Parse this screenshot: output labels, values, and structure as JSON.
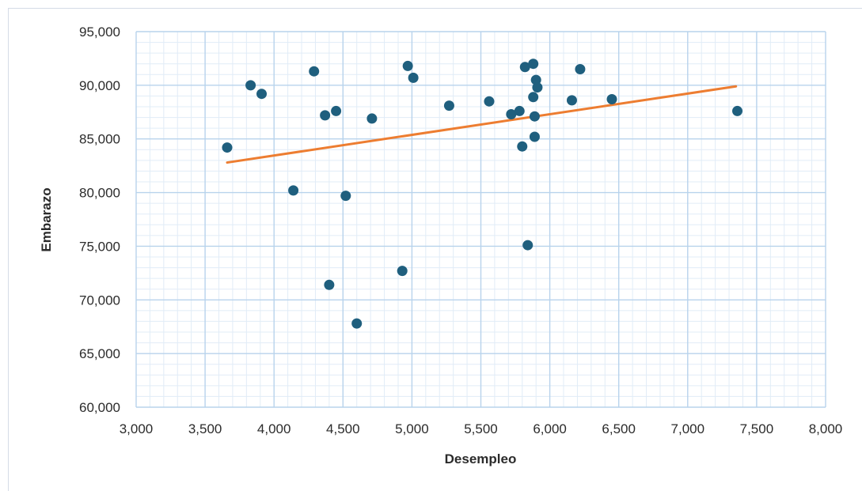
{
  "chart_data": {
    "type": "scatter",
    "xlabel": "Desempleo",
    "ylabel": "Embarazo",
    "xlim": [
      3000,
      8000
    ],
    "ylim": [
      60000,
      95000
    ],
    "x_major_step": 500,
    "y_major_step": 5000,
    "x_minor_step": 100,
    "y_minor_step": 1000,
    "x_ticks": [
      "3,000",
      "3,500",
      "4,000",
      "4,500",
      "5,000",
      "5,500",
      "6,000",
      "6,500",
      "7,000",
      "7,500",
      "8,000"
    ],
    "y_ticks": [
      "60,000",
      "65,000",
      "70,000",
      "75,000",
      "80,000",
      "85,000",
      "90,000",
      "95,000"
    ],
    "grid": true,
    "legend": "none",
    "colors": {
      "points": "#1f5f7e",
      "trendline": "#ed7d31",
      "major_grid": "#b8d3ec",
      "minor_grid": "#e1ecf7"
    },
    "points": [
      {
        "x": 3660,
        "y": 84200
      },
      {
        "x": 3830,
        "y": 90000
      },
      {
        "x": 3910,
        "y": 89200
      },
      {
        "x": 4140,
        "y": 80200
      },
      {
        "x": 4290,
        "y": 91300
      },
      {
        "x": 4370,
        "y": 87200
      },
      {
        "x": 4400,
        "y": 71400
      },
      {
        "x": 4450,
        "y": 87600
      },
      {
        "x": 4520,
        "y": 79700
      },
      {
        "x": 4600,
        "y": 67800
      },
      {
        "x": 4710,
        "y": 86900
      },
      {
        "x": 4930,
        "y": 72700
      },
      {
        "x": 4970,
        "y": 91800
      },
      {
        "x": 5010,
        "y": 90700
      },
      {
        "x": 5270,
        "y": 88100
      },
      {
        "x": 5560,
        "y": 88500
      },
      {
        "x": 5720,
        "y": 87300
      },
      {
        "x": 5780,
        "y": 87600
      },
      {
        "x": 5800,
        "y": 84300
      },
      {
        "x": 5820,
        "y": 91700
      },
      {
        "x": 5840,
        "y": 75100
      },
      {
        "x": 5880,
        "y": 92000
      },
      {
        "x": 5880,
        "y": 88900
      },
      {
        "x": 5890,
        "y": 87100
      },
      {
        "x": 5890,
        "y": 85200
      },
      {
        "x": 5900,
        "y": 90500
      },
      {
        "x": 5910,
        "y": 89800
      },
      {
        "x": 6160,
        "y": 88600
      },
      {
        "x": 6220,
        "y": 91500
      },
      {
        "x": 6450,
        "y": 88700
      },
      {
        "x": 7360,
        "y": 87600
      }
    ],
    "trendline": {
      "type": "linear",
      "x": [
        3660,
        7350
      ],
      "y": [
        82800,
        89900
      ]
    }
  }
}
